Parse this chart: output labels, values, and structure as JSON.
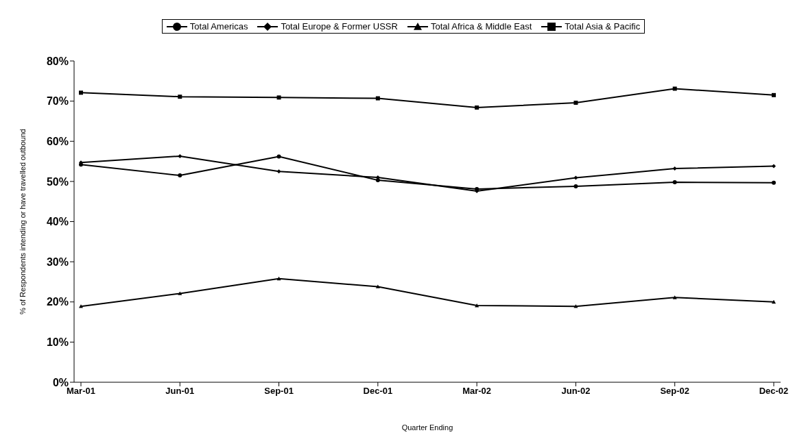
{
  "chart_data": {
    "type": "line",
    "xlabel": "Quarter Ending",
    "ylabel": "% of Respondents intending or have travelled outbound",
    "categories": [
      "Mar-01",
      "Jun-01",
      "Sep-01",
      "Dec-01",
      "Mar-02",
      "Jun-02",
      "Sep-02",
      "Dec-02"
    ],
    "series": [
      {
        "name": "Total Americas",
        "color": "#000000",
        "marker": "circle",
        "values": [
          54.2,
          51.5,
          56.2,
          50.3,
          48.1,
          48.8,
          49.8,
          49.7
        ]
      },
      {
        "name": "Total Europe & Former USSR",
        "color": "#000000",
        "marker": "diamond",
        "values": [
          54.7,
          56.3,
          52.5,
          51.0,
          47.6,
          50.9,
          53.2,
          53.8
        ]
      },
      {
        "name": "Total Africa & Middle East",
        "color": "#000000",
        "marker": "triangle",
        "values": [
          18.9,
          22.1,
          25.8,
          23.8,
          19.1,
          18.9,
          21.1,
          20.0
        ]
      },
      {
        "name": "Total Asia & Pacific",
        "color": "#000000",
        "marker": "square",
        "values": [
          72.1,
          71.1,
          70.9,
          70.7,
          68.4,
          69.6,
          73.1,
          71.5
        ]
      }
    ],
    "ylim": [
      0,
      80
    ],
    "yticks": [
      {
        "value": 0,
        "label": "0%"
      },
      {
        "value": 10,
        "label": "10%"
      },
      {
        "value": 20,
        "label": "20%"
      },
      {
        "value": 30,
        "label": "30%"
      },
      {
        "value": 40,
        "label": "40%"
      },
      {
        "value": 50,
        "label": "50%"
      },
      {
        "value": 60,
        "label": "60%"
      },
      {
        "value": 70,
        "label": "70%"
      },
      {
        "value": 80,
        "label": "80%"
      }
    ],
    "grid": false,
    "legend": "top",
    "line_style": "solid"
  }
}
